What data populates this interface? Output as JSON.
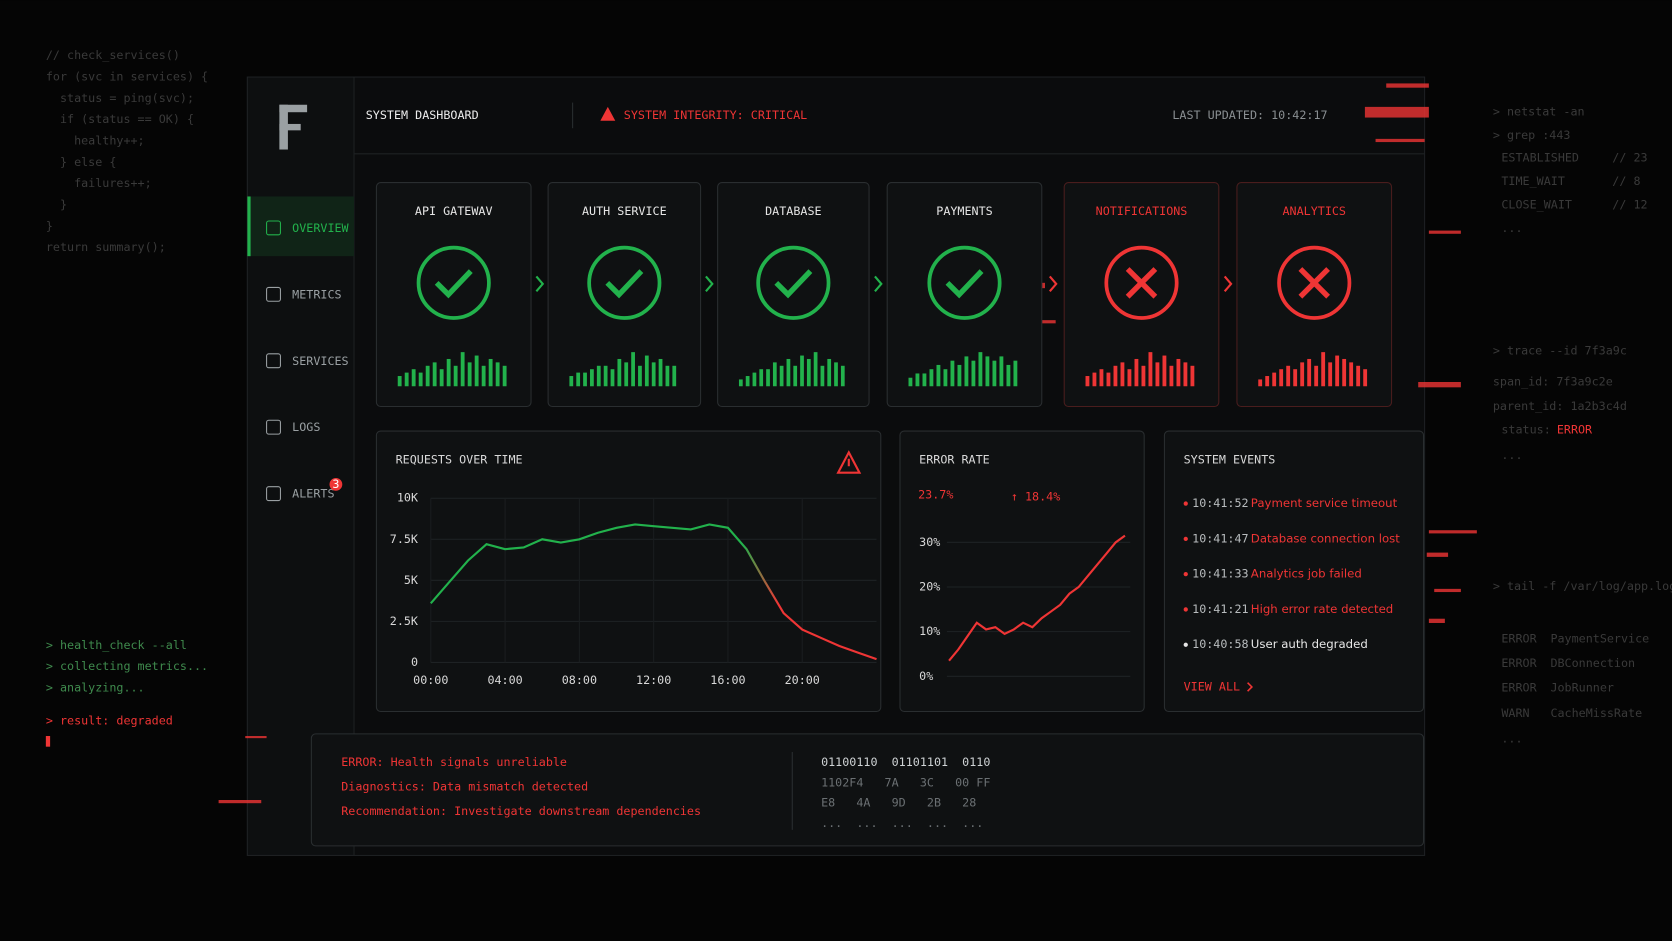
{
  "code": {
    "lines": [
      "// check_services()",
      "for (svc in services) {",
      "  status = ping(svc);",
      "  if (status == OK) {",
      "    healthy++;",
      "  } else {",
      "    failures++;",
      "  }",
      "}",
      "return summary();"
    ]
  },
  "console": {
    "lines": [
      "> health_check --all",
      "> collecting metrics...",
      "> analyzing...",
      "> result: degraded"
    ]
  },
  "terminal": [
    {
      "lines": [
        "> netstat -an",
        "> grep :443"
      ],
      "rows": [
        [
          "ESTABLISHED",
          "// 23"
        ],
        [
          "TIME_WAIT",
          "// 8"
        ],
        [
          "CLOSE_WAIT",
          "// 12"
        ]
      ],
      "more": "..."
    },
    {
      "lines": [
        "> trace --id 7f3a9c",
        "span_id: 7f3a9c2e",
        "parent_id: 1a2b3c4d"
      ],
      "rows": [
        [
          "status:",
          "ERROR"
        ]
      ],
      "more": "..."
    },
    {
      "lines": [
        "> tail -f /var/log/app.log"
      ],
      "rows": [
        [
          "ERROR",
          "PaymentService"
        ],
        [
          "ERROR",
          "DBConnection"
        ],
        [
          "ERROR",
          "JobRunner"
        ],
        [
          "WARN",
          "CacheMissRate"
        ]
      ],
      "more": "..."
    }
  ],
  "sidebar": {
    "items": [
      "OVERVIEW",
      "METRICS",
      "SERVICES",
      "LOGS",
      "ALERTS"
    ],
    "alert_badge": "3"
  },
  "header": {
    "title": "SYSTEM DASHBOARD",
    "status": "SYSTEM INTEGRITY: CRITICAL",
    "updated": "LAST UPDATED: 10:42:17"
  },
  "services": [
    {
      "name": "API GATEWAV",
      "color": "#22b24c",
      "icon": "check",
      "activity": [
        3,
        4,
        5,
        4,
        6,
        7,
        5,
        8,
        6,
        10,
        7,
        9,
        6,
        8,
        7,
        6
      ]
    },
    {
      "name": "AUTH SERVICE",
      "color": "#22b24c",
      "icon": "check",
      "activity": [
        3,
        4,
        4,
        5,
        6,
        6,
        5,
        8,
        7,
        10,
        6,
        9,
        7,
        8,
        6,
        6
      ]
    },
    {
      "name": "DATABASE",
      "color": "#22b24c",
      "icon": "check",
      "activity": [
        2,
        3,
        4,
        5,
        5,
        7,
        6,
        8,
        6,
        9,
        8,
        10,
        6,
        8,
        7,
        6
      ]
    },
    {
      "name": "PAYMENTS",
      "color": "#22b24c",
      "icon": "check",
      "activity": [
        2,
        3,
        3,
        4,
        5,
        4,
        6,
        5,
        7,
        6,
        8,
        7,
        6,
        7,
        5,
        6
      ]
    },
    {
      "name": "NOTIFICATIONS",
      "color": "#ef3535",
      "icon": "cross",
      "activity": [
        3,
        4,
        5,
        4,
        6,
        7,
        5,
        8,
        6,
        10,
        7,
        9,
        6,
        8,
        7,
        6
      ]
    },
    {
      "name": "ANALYTICS",
      "color": "#ef3535",
      "icon": "cross",
      "activity": [
        2,
        3,
        4,
        5,
        6,
        5,
        7,
        8,
        6,
        10,
        7,
        9,
        8,
        7,
        6,
        5
      ]
    }
  ],
  "chart_data": [
    {
      "type": "line",
      "title": "REQUESTS OVER TIME",
      "x": [
        0,
        1,
        2,
        3,
        4,
        5,
        6,
        7,
        8,
        9,
        10,
        11,
        12,
        13,
        14,
        15,
        16,
        17,
        18,
        19,
        20,
        21,
        22,
        23,
        24
      ],
      "series": [
        {
          "values": [
            3600,
            4900,
            6200,
            7200,
            6900,
            7000,
            7500,
            7300,
            7500,
            7900,
            8200,
            8400,
            8300,
            8200,
            8100,
            8400,
            8200,
            6900,
            4900,
            3000,
            2000,
            1500,
            1000,
            600,
            200
          ],
          "color": "#22b24c",
          "color_end": "#ef3535"
        }
      ],
      "xlim": [
        0,
        24
      ],
      "ylim": [
        0,
        10000
      ],
      "xticks": [
        {
          "value": 0,
          "label": "00:00"
        },
        {
          "value": 4,
          "label": "04:00"
        },
        {
          "value": 8,
          "label": "08:00"
        },
        {
          "value": 12,
          "label": "12:00"
        },
        {
          "value": 16,
          "label": "16:00"
        },
        {
          "value": 20,
          "label": "20:00"
        }
      ],
      "yticks": [
        0,
        {
          "value": 2500,
          "label": "2.5K"
        },
        {
          "value": 5000,
          "label": "5K"
        },
        {
          "value": 7500,
          "label": "7.5K"
        },
        {
          "value": 10000,
          "label": "10K"
        }
      ],
      "grid": true
    },
    {
      "type": "line",
      "title": "ERROR RATE",
      "headline": "23.7%",
      "change": "↑ 18.4%",
      "values": [
        3.5,
        6,
        9,
        12,
        10.5,
        11,
        9.5,
        10.5,
        12,
        11,
        13,
        14.5,
        16,
        18.5,
        20,
        22.5,
        25,
        27.5,
        30,
        31.5
      ],
      "color": "#ef3535",
      "ylim": [
        0,
        32
      ],
      "yticks": [
        {
          "value": 0,
          "label": "0%"
        },
        {
          "value": 10,
          "label": "10%"
        },
        {
          "value": 20,
          "label": "20%"
        },
        {
          "value": 30,
          "label": "30%"
        }
      ]
    }
  ],
  "events": {
    "title": "SYSTEM EVENTS",
    "items": [
      {
        "time": "10:41:52",
        "message": "Payment service timeout",
        "color": "#ef3535"
      },
      {
        "time": "10:41:47",
        "message": "Database connection lost",
        "color": "#ef3535"
      },
      {
        "time": "10:41:33",
        "message": "Analytics job failed",
        "color": "#ef3535"
      },
      {
        "time": "10:41:21",
        "message": "High error rate detected",
        "color": "#ef3535"
      },
      {
        "time": "10:40:58",
        "message": "User auth degraded",
        "color": "#e6e6e6"
      }
    ],
    "link": "VIEW ALL"
  },
  "diagnostics": {
    "lines": [
      "ERROR: Health signals unreliable",
      "Diagnostics: Data mismatch detected",
      "Recommendation: Investigate downstream dependencies"
    ],
    "hex": [
      "01100110  01101101  0110",
      "1102F4   7A   3C   00 FF",
      "E8   4A   9D   2B   28",
      "...  ...  ...  ...  ..."
    ]
  }
}
